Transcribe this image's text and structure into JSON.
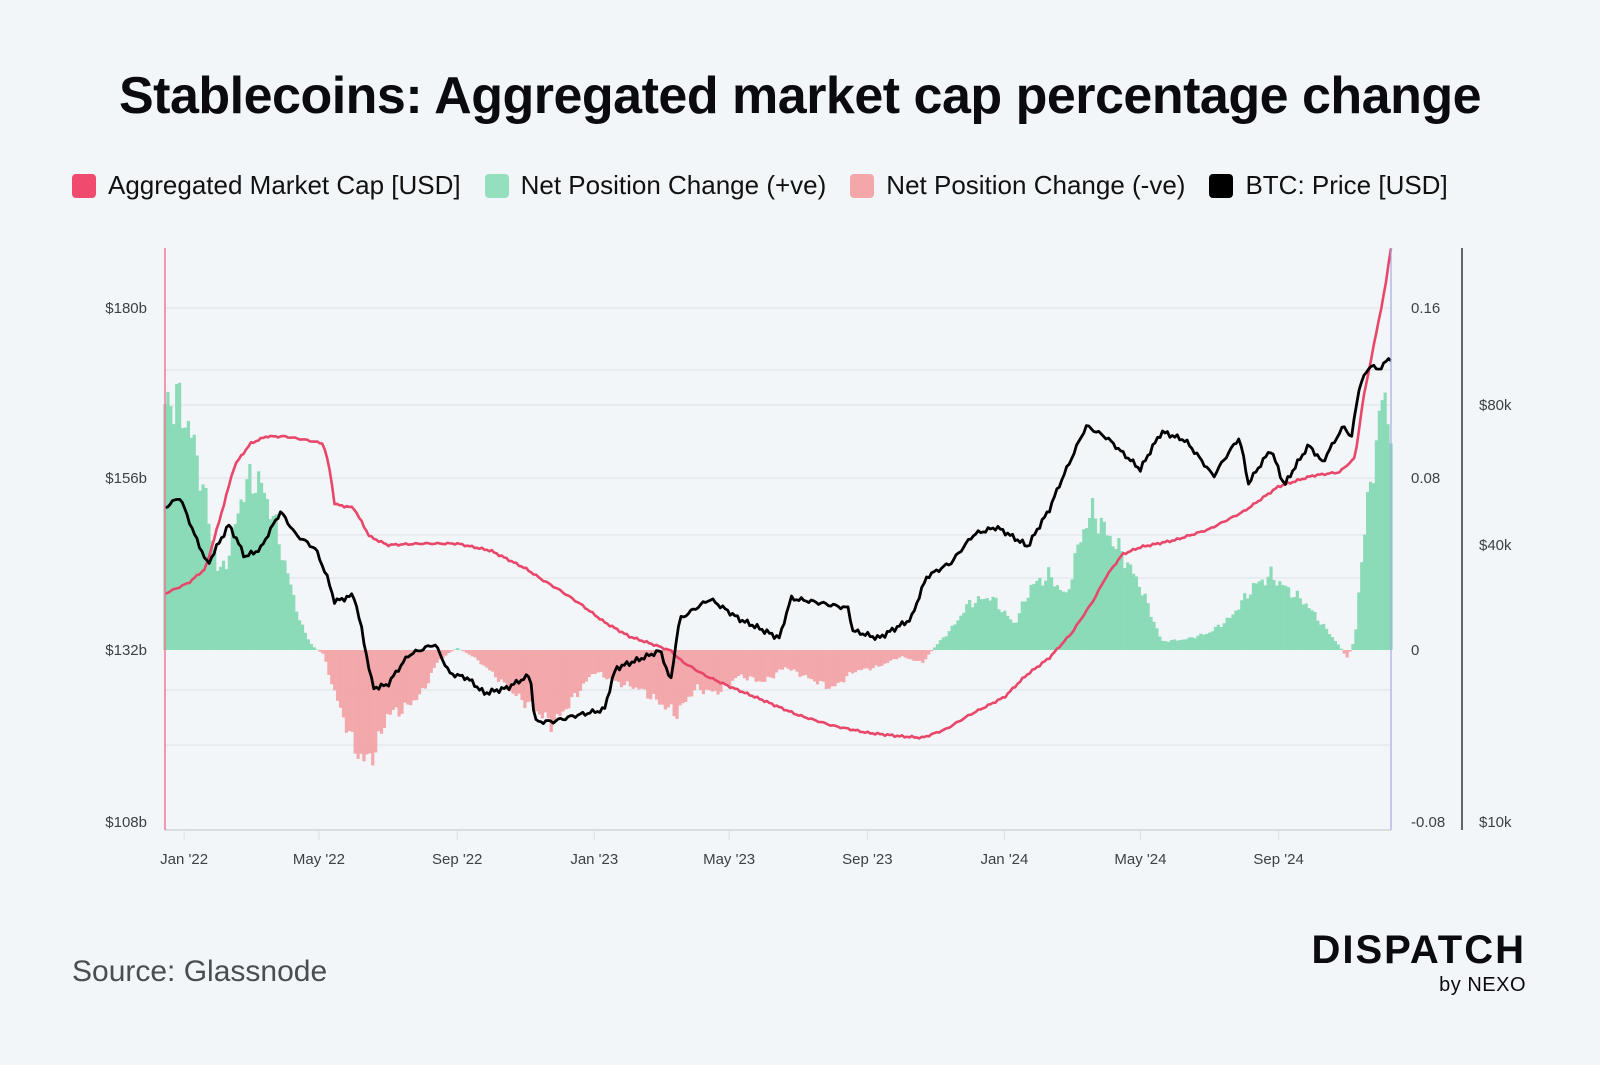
{
  "title": "Stablecoins: Aggregated market cap percentage change",
  "source": "Source: Glassnode",
  "brand": {
    "name": "DISPATCH",
    "sub": "by NEXO"
  },
  "colors": {
    "background": "#f3f6f9",
    "market_cap": "#e8476a",
    "net_pos": "#86d9b4",
    "net_neg": "#f2a3a6",
    "btc": "#000000",
    "grid": "#dde1e6"
  },
  "legend": [
    {
      "label": "Aggregated Market Cap [USD]",
      "color": "#f04a6e"
    },
    {
      "label": "Net Position Change (+ve)",
      "color": "#94dfbe"
    },
    {
      "label": "Net Position Change (-ve)",
      "color": "#f4a7a8"
    },
    {
      "label": "BTC: Price [USD]",
      "color": "#000000"
    }
  ],
  "chart_data": {
    "type": "line",
    "title": "Stablecoins: Aggregated market cap percentage change",
    "x_ticks": [
      "Jan '22",
      "May '22",
      "Sep '22",
      "Jan '23",
      "May '23",
      "Sep '23",
      "Jan '24",
      "May '24",
      "Sep '24"
    ],
    "x_range": [
      "2021-12-15",
      "2024-12-10"
    ],
    "axes": {
      "left": {
        "label": "Aggregated Market Cap [USD]",
        "ticks": [
          "$108b",
          "$132b",
          "$156b",
          "$180b"
        ],
        "range": [
          108,
          189
        ],
        "unit": "billion USD"
      },
      "right_inner": {
        "label": "Net Position Change",
        "ticks": [
          "-0.08",
          "0",
          "0.08",
          "0.16"
        ],
        "range": [
          -0.08,
          0.187
        ]
      },
      "right_outer": {
        "label": "BTC: Price [USD]",
        "ticks": [
          "$10k",
          "$40k",
          "$80k"
        ],
        "scale": "log",
        "range": [
          10000,
          200000
        ]
      }
    },
    "grid": true,
    "legend_position": "top",
    "series": [
      {
        "name": "Aggregated Market Cap [USD]",
        "axis": "left",
        "unit": "billion USD",
        "points": [
          [
            "2021-12-15",
            140.0
          ],
          [
            "2022-01-05",
            141.5
          ],
          [
            "2022-01-20",
            143.5
          ],
          [
            "2022-02-01",
            150.0
          ],
          [
            "2022-02-15",
            158.0
          ],
          [
            "2022-03-01",
            161.0
          ],
          [
            "2022-03-15",
            162.0
          ],
          [
            "2022-04-01",
            162.0
          ],
          [
            "2022-04-20",
            161.5
          ],
          [
            "2022-05-05",
            161.0
          ],
          [
            "2022-05-11",
            157.0
          ],
          [
            "2022-05-15",
            152.5
          ],
          [
            "2022-06-01",
            152.0
          ],
          [
            "2022-06-15",
            148.0
          ],
          [
            "2022-07-01",
            146.8
          ],
          [
            "2022-08-01",
            147.0
          ],
          [
            "2022-09-01",
            147.0
          ],
          [
            "2022-10-01",
            146.0
          ],
          [
            "2022-11-01",
            143.5
          ],
          [
            "2022-11-15",
            142.0
          ],
          [
            "2022-12-01",
            140.5
          ],
          [
            "2022-12-20",
            138.5
          ],
          [
            "2023-01-10",
            136.0
          ],
          [
            "2023-02-01",
            134.0
          ],
          [
            "2023-02-20",
            133.0
          ],
          [
            "2023-03-10",
            132.0
          ],
          [
            "2023-03-20",
            130.5
          ],
          [
            "2023-04-10",
            128.5
          ],
          [
            "2023-05-01",
            127.0
          ],
          [
            "2023-06-01",
            125.0
          ],
          [
            "2023-07-01",
            123.0
          ],
          [
            "2023-08-01",
            121.5
          ],
          [
            "2023-09-01",
            120.5
          ],
          [
            "2023-10-01",
            120.0
          ],
          [
            "2023-10-20",
            119.8
          ],
          [
            "2023-11-10",
            121.0
          ],
          [
            "2023-12-01",
            123.0
          ],
          [
            "2024-01-01",
            125.5
          ],
          [
            "2024-01-20",
            128.5
          ],
          [
            "2024-02-10",
            131.0
          ],
          [
            "2024-03-01",
            134.5
          ],
          [
            "2024-03-20",
            139.0
          ],
          [
            "2024-04-01",
            142.5
          ],
          [
            "2024-04-15",
            145.5
          ],
          [
            "2024-05-01",
            146.5
          ],
          [
            "2024-06-01",
            147.5
          ],
          [
            "2024-07-01",
            149.0
          ],
          [
            "2024-08-01",
            151.5
          ],
          [
            "2024-09-01",
            155.0
          ],
          [
            "2024-10-01",
            156.5
          ],
          [
            "2024-10-25",
            157.0
          ],
          [
            "2024-11-08",
            159.0
          ],
          [
            "2024-11-15",
            167.0
          ],
          [
            "2024-11-25",
            175.0
          ],
          [
            "2024-12-05",
            183.0
          ],
          [
            "2024-12-10",
            188.5
          ]
        ]
      },
      {
        "name": "Net Position Change",
        "axis": "right_inner",
        "points": [
          [
            "2021-12-15",
            0.115
          ],
          [
            "2021-12-25",
            0.118
          ],
          [
            "2022-01-05",
            0.105
          ],
          [
            "2022-01-15",
            0.085
          ],
          [
            "2022-01-25",
            0.055
          ],
          [
            "2022-02-01",
            0.035
          ],
          [
            "2022-02-10",
            0.045
          ],
          [
            "2022-02-20",
            0.07
          ],
          [
            "2022-03-01",
            0.08
          ],
          [
            "2022-03-10",
            0.078
          ],
          [
            "2022-03-20",
            0.065
          ],
          [
            "2022-04-01",
            0.04
          ],
          [
            "2022-04-15",
            0.012
          ],
          [
            "2022-04-25",
            0.002
          ],
          [
            "2022-05-05",
            -0.002
          ],
          [
            "2022-05-15",
            -0.02
          ],
          [
            "2022-06-01",
            -0.045
          ],
          [
            "2022-06-10",
            -0.052
          ],
          [
            "2022-06-20",
            -0.048
          ],
          [
            "2022-07-01",
            -0.03
          ],
          [
            "2022-07-15",
            -0.028
          ],
          [
            "2022-08-01",
            -0.02
          ],
          [
            "2022-08-15",
            -0.005
          ],
          [
            "2022-09-01",
            0.001
          ],
          [
            "2022-09-15",
            -0.003
          ],
          [
            "2022-10-01",
            -0.01
          ],
          [
            "2022-10-20",
            -0.02
          ],
          [
            "2022-11-10",
            -0.028
          ],
          [
            "2022-11-25",
            -0.035
          ],
          [
            "2022-12-10",
            -0.025
          ],
          [
            "2023-01-01",
            -0.01
          ],
          [
            "2023-01-20",
            -0.015
          ],
          [
            "2023-02-10",
            -0.018
          ],
          [
            "2023-03-01",
            -0.025
          ],
          [
            "2023-03-15",
            -0.03
          ],
          [
            "2023-04-01",
            -0.018
          ],
          [
            "2023-04-20",
            -0.02
          ],
          [
            "2023-05-10",
            -0.012
          ],
          [
            "2023-06-01",
            -0.015
          ],
          [
            "2023-06-20",
            -0.008
          ],
          [
            "2023-07-10",
            -0.013
          ],
          [
            "2023-08-01",
            -0.018
          ],
          [
            "2023-08-20",
            -0.01
          ],
          [
            "2023-09-10",
            -0.008
          ],
          [
            "2023-10-01",
            -0.003
          ],
          [
            "2023-10-20",
            -0.006
          ],
          [
            "2023-11-01",
            0.002
          ],
          [
            "2023-11-15",
            0.01
          ],
          [
            "2023-12-01",
            0.022
          ],
          [
            "2023-12-20",
            0.025
          ],
          [
            "2024-01-10",
            0.012
          ],
          [
            "2024-01-25",
            0.03
          ],
          [
            "2024-02-10",
            0.035
          ],
          [
            "2024-02-25",
            0.025
          ],
          [
            "2024-03-10",
            0.055
          ],
          [
            "2024-03-20",
            0.065
          ],
          [
            "2024-04-01",
            0.055
          ],
          [
            "2024-04-15",
            0.045
          ],
          [
            "2024-05-01",
            0.03
          ],
          [
            "2024-05-20",
            0.004
          ],
          [
            "2024-06-10",
            0.005
          ],
          [
            "2024-07-01",
            0.008
          ],
          [
            "2024-07-20",
            0.015
          ],
          [
            "2024-08-10",
            0.03
          ],
          [
            "2024-08-25",
            0.035
          ],
          [
            "2024-09-10",
            0.028
          ],
          [
            "2024-09-25",
            0.022
          ],
          [
            "2024-10-10",
            0.012
          ],
          [
            "2024-10-25",
            0.002
          ],
          [
            "2024-11-01",
            -0.004
          ],
          [
            "2024-11-08",
            0.005
          ],
          [
            "2024-11-15",
            0.05
          ],
          [
            "2024-11-25",
            0.09
          ],
          [
            "2024-12-03",
            0.12
          ],
          [
            "2024-12-10",
            0.105
          ]
        ]
      },
      {
        "name": "BTC: Price [USD]",
        "axis": "right_outer",
        "points": [
          [
            "2021-12-15",
            48000
          ],
          [
            "2021-12-28",
            50500
          ],
          [
            "2022-01-10",
            42000
          ],
          [
            "2022-01-22",
            36000
          ],
          [
            "2022-02-10",
            44000
          ],
          [
            "2022-02-24",
            37500
          ],
          [
            "2022-03-10",
            39000
          ],
          [
            "2022-03-28",
            47000
          ],
          [
            "2022-04-10",
            42000
          ],
          [
            "2022-04-28",
            39000
          ],
          [
            "2022-05-08",
            34000
          ],
          [
            "2022-05-15",
            30000
          ],
          [
            "2022-06-01",
            31000
          ],
          [
            "2022-06-13",
            22500
          ],
          [
            "2022-06-18",
            19500
          ],
          [
            "2022-07-01",
            19800
          ],
          [
            "2022-07-20",
            23000
          ],
          [
            "2022-08-12",
            24300
          ],
          [
            "2022-08-25",
            21000
          ],
          [
            "2022-09-10",
            20500
          ],
          [
            "2022-09-25",
            19000
          ],
          [
            "2022-10-15",
            19500
          ],
          [
            "2022-11-05",
            20800
          ],
          [
            "2022-11-09",
            16500
          ],
          [
            "2022-11-25",
            16500
          ],
          [
            "2022-12-15",
            17000
          ],
          [
            "2023-01-10",
            17500
          ],
          [
            "2023-01-20",
            21500
          ],
          [
            "2023-02-10",
            22500
          ],
          [
            "2023-03-01",
            23500
          ],
          [
            "2023-03-10",
            20000
          ],
          [
            "2023-03-18",
            27500
          ],
          [
            "2023-04-14",
            30400
          ],
          [
            "2023-05-10",
            27500
          ],
          [
            "2023-06-15",
            25000
          ],
          [
            "2023-06-25",
            30500
          ],
          [
            "2023-07-15",
            30000
          ],
          [
            "2023-08-16",
            29000
          ],
          [
            "2023-08-18",
            26000
          ],
          [
            "2023-09-11",
            25000
          ],
          [
            "2023-10-10",
            27500
          ],
          [
            "2023-10-24",
            34000
          ],
          [
            "2023-11-15",
            36500
          ],
          [
            "2023-12-05",
            42000
          ],
          [
            "2023-12-25",
            43500
          ],
          [
            "2024-01-22",
            39500
          ],
          [
            "2024-02-10",
            47500
          ],
          [
            "2024-02-28",
            60000
          ],
          [
            "2024-03-14",
            72000
          ],
          [
            "2024-04-01",
            68000
          ],
          [
            "2024-04-15",
            63000
          ],
          [
            "2024-05-01",
            58000
          ],
          [
            "2024-05-20",
            70000
          ],
          [
            "2024-06-10",
            67000
          ],
          [
            "2024-07-05",
            56000
          ],
          [
            "2024-07-28",
            68000
          ],
          [
            "2024-08-05",
            54000
          ],
          [
            "2024-08-25",
            64000
          ],
          [
            "2024-09-06",
            53500
          ],
          [
            "2024-09-28",
            65500
          ],
          [
            "2024-10-10",
            60000
          ],
          [
            "2024-10-29",
            72000
          ],
          [
            "2024-11-05",
            68000
          ],
          [
            "2024-11-12",
            88000
          ],
          [
            "2024-11-22",
            98000
          ],
          [
            "2024-11-28",
            95000
          ],
          [
            "2024-12-05",
            99000
          ],
          [
            "2024-12-10",
            101000
          ]
        ]
      }
    ]
  }
}
